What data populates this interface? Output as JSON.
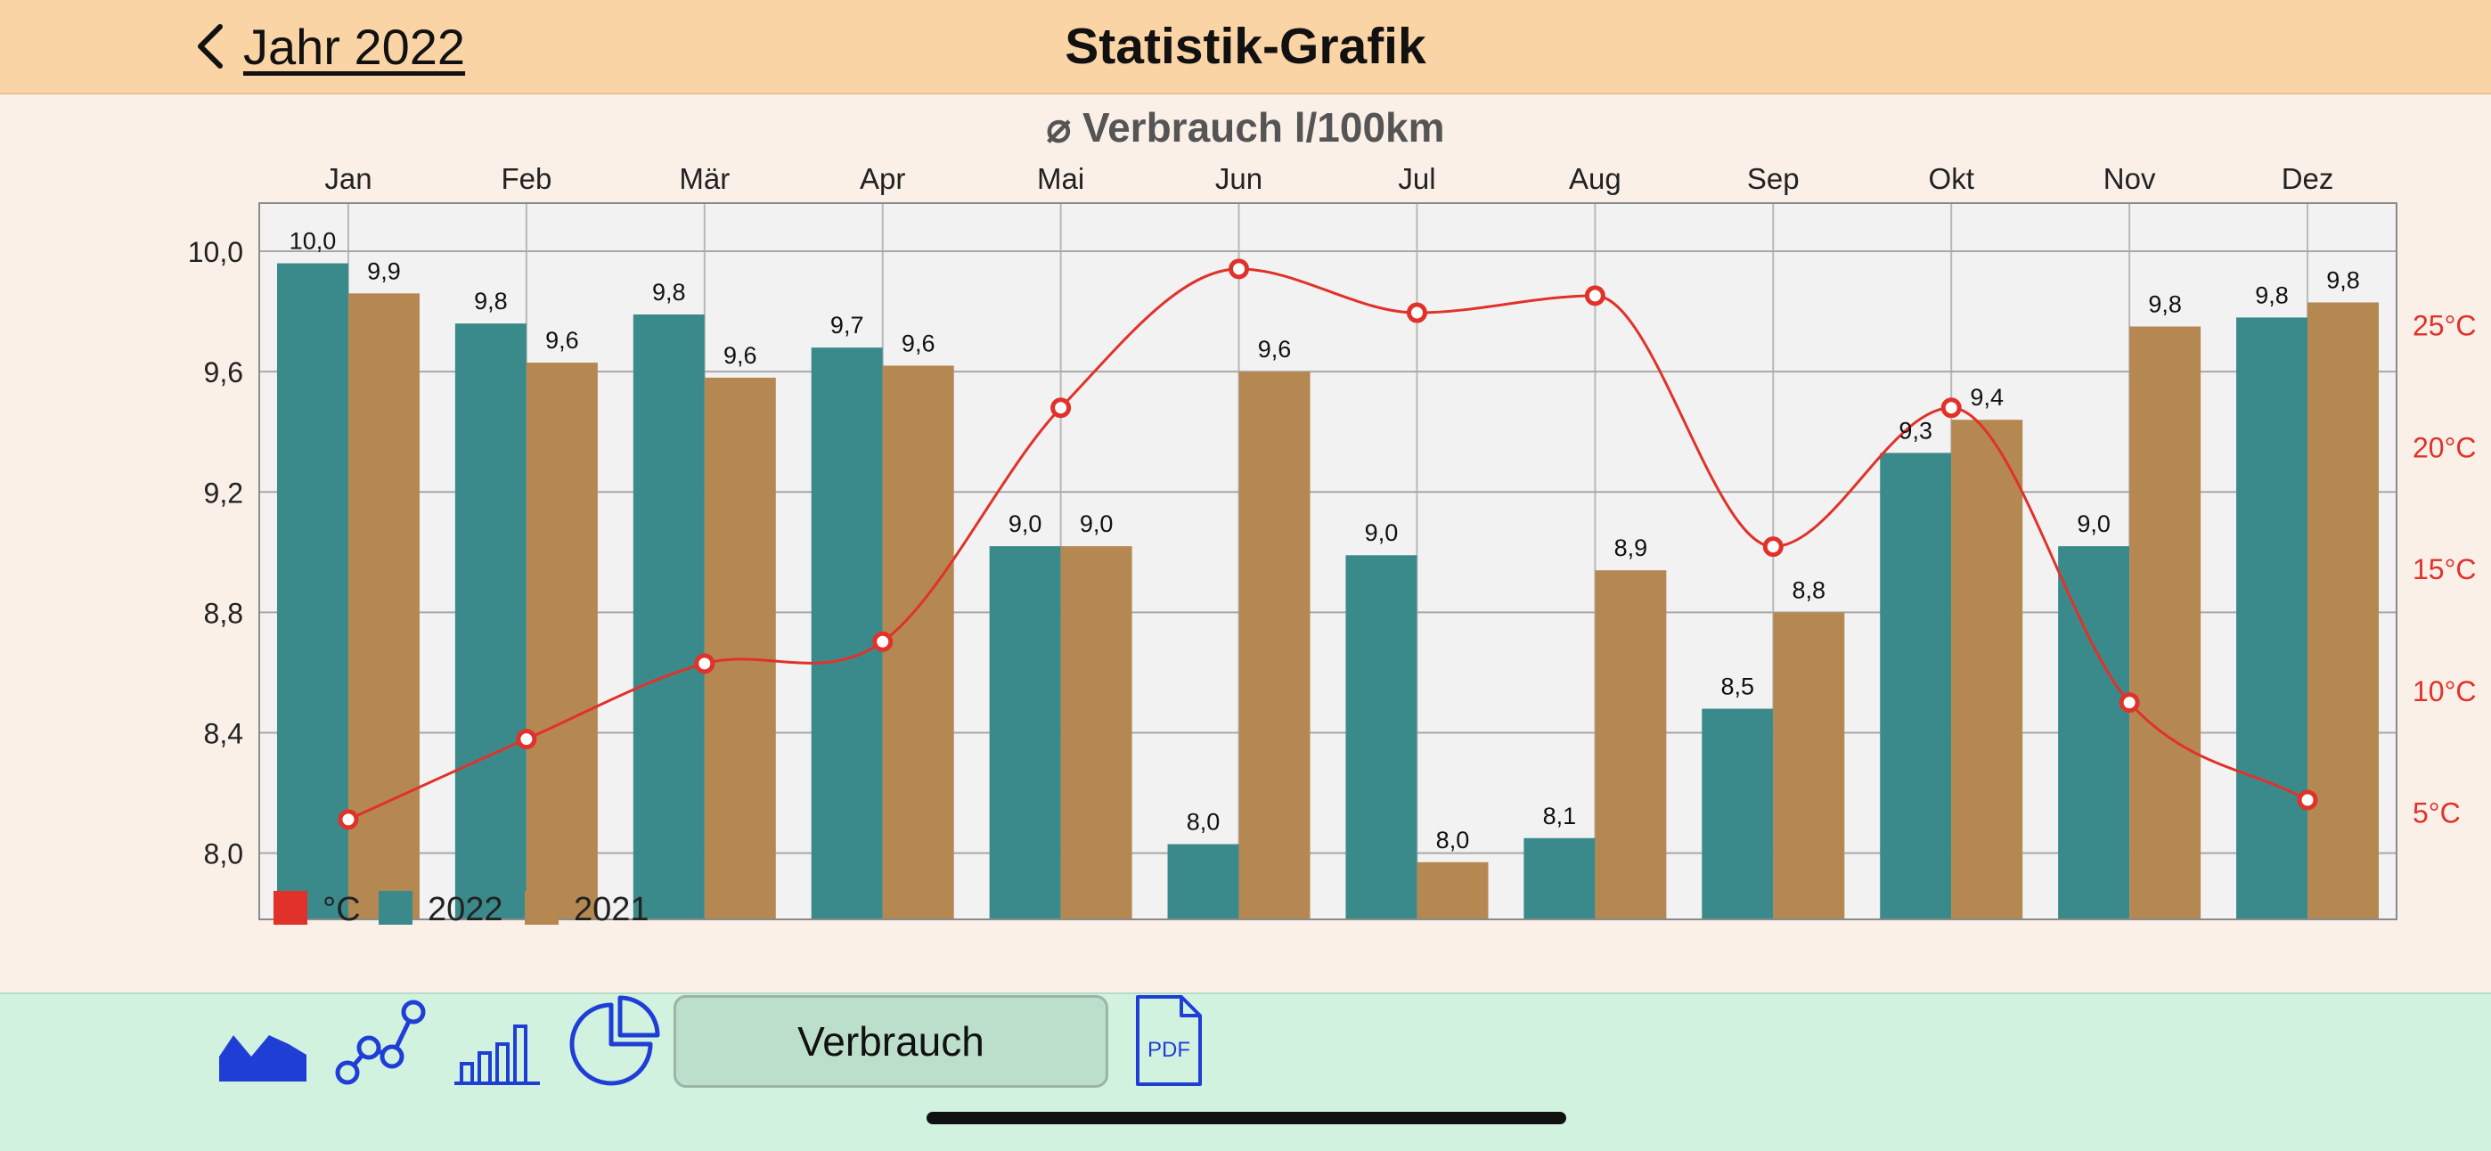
{
  "nav": {
    "back_label": "Jahr 2022",
    "title": "Statistik-Grafik"
  },
  "chart_data": {
    "type": "bar",
    "title": "⌀ Verbrauch l/100km",
    "categories": [
      "Jan",
      "Feb",
      "Mär",
      "Apr",
      "Mai",
      "Jun",
      "Jul",
      "Aug",
      "Sep",
      "Okt",
      "Nov",
      "Dez"
    ],
    "ylim": [
      7.78,
      10.16
    ],
    "yticks": [
      8.0,
      8.4,
      8.8,
      9.2,
      9.6,
      10.0
    ],
    "ytick_labels": [
      "8,0",
      "8,4",
      "8,8",
      "9,2",
      "9,6",
      "10,0"
    ],
    "series": [
      {
        "name": "2022",
        "color": "#3b8a8b",
        "values": [
          9.96,
          9.76,
          9.79,
          9.68,
          9.02,
          8.03,
          8.99,
          8.05,
          8.48,
          9.33,
          9.02,
          9.78
        ],
        "labels": [
          "10,0",
          "9,8",
          "9,8",
          "9,7",
          "9,0",
          "8,0",
          "9,0",
          "8,1",
          "8,5",
          "9,3",
          "9,0",
          "9,8"
        ]
      },
      {
        "name": "2021",
        "color": "#b58852",
        "values": [
          9.86,
          9.63,
          9.58,
          9.62,
          9.02,
          9.6,
          7.97,
          8.94,
          8.8,
          9.44,
          9.75,
          9.83
        ],
        "labels": [
          "9,9",
          "9,6",
          "9,6",
          "9,6",
          "9,0",
          "9,6",
          "8,0",
          "8,9",
          "8,8",
          "9,4",
          "9,8",
          "9,8"
        ]
      }
    ],
    "line_series": {
      "name": "°C",
      "color": "#e0322a",
      "values": [
        4.7,
        8.0,
        11.1,
        12.0,
        21.6,
        27.3,
        25.5,
        26.2,
        15.9,
        21.6,
        9.5,
        5.5
      ]
    },
    "y2lim": [
      0.6,
      30.0
    ],
    "y2ticks": [
      5,
      10,
      15,
      20,
      25
    ],
    "y2tick_labels": [
      "5°C",
      "10°C",
      "15°C",
      "20°C",
      "25°C"
    ],
    "grid": true,
    "legend_position": "bottom-left"
  },
  "toolbar": {
    "consumption_label": "Verbrauch",
    "pdf_label": "PDF"
  }
}
